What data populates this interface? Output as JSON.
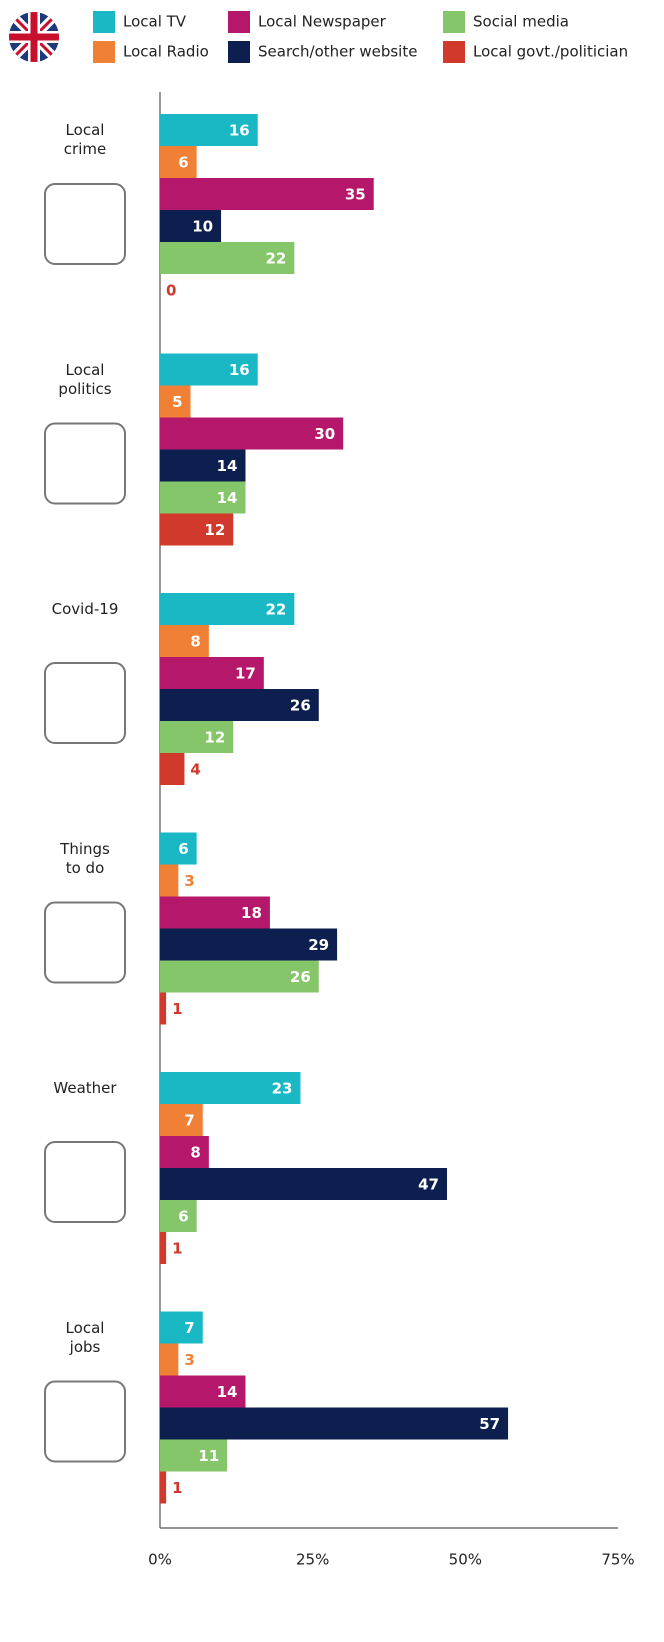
{
  "chart_data": {
    "type": "bar",
    "orientation": "horizontal",
    "categories": [
      "Local\ncrime",
      "Local\npolitics",
      "Covid-19",
      "Things\nto do",
      "Weather",
      "Local\njobs"
    ],
    "series": [
      {
        "name": "Local TV",
        "color": "#1ab8c4",
        "values": [
          16,
          16,
          22,
          6,
          23,
          7
        ]
      },
      {
        "name": "Local Radio",
        "color": "#f08035",
        "values": [
          6,
          5,
          8,
          3,
          7,
          3
        ]
      },
      {
        "name": "Local Newspaper",
        "color": "#b5186b",
        "values": [
          35,
          30,
          17,
          18,
          8,
          14
        ]
      },
      {
        "name": "Search/other website",
        "color": "#0d1f4f",
        "values": [
          10,
          14,
          26,
          29,
          47,
          57
        ]
      },
      {
        "name": "Social media",
        "color": "#86c66a",
        "values": [
          22,
          14,
          12,
          26,
          6,
          11
        ]
      },
      {
        "name": "Local govt./politician",
        "color": "#d0392b",
        "values": [
          0,
          12,
          4,
          1,
          1,
          1
        ]
      }
    ],
    "xlim": [
      0,
      75
    ],
    "xticks": [
      {
        "value": 0,
        "label": "0%"
      },
      {
        "value": 25,
        "label": "25%"
      },
      {
        "value": 50,
        "label": "50%"
      },
      {
        "value": 75,
        "label": "75%"
      }
    ],
    "legend": "top"
  }
}
